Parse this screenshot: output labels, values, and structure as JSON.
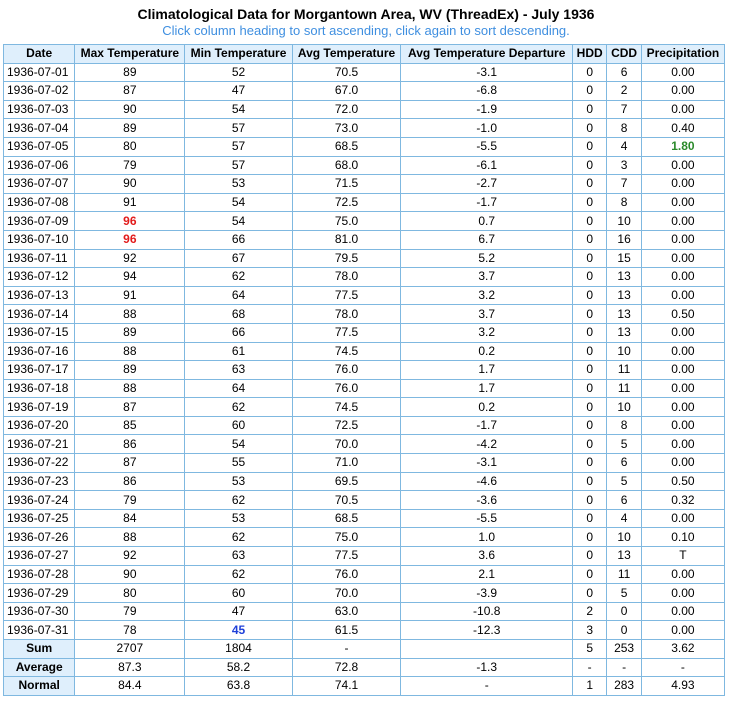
{
  "title": "Climatological Data for Morgantown Area, WV (ThreadEx) - July 1936",
  "subtitle": "Click column heading to sort ascending, click again to sort descending.",
  "colors": {
    "record_high": "#e21b1b",
    "record_low": "#1e3fd8",
    "max_precip": "#2b8a2b",
    "header_bg": "#dfeffc",
    "border": "#7fb8e0"
  },
  "columns": [
    "Date",
    "Max Temperature",
    "Min Temperature",
    "Avg Temperature",
    "Avg Temperature Departure",
    "HDD",
    "CDD",
    "Precipitation"
  ],
  "rows": [
    [
      "1936-07-01",
      "89",
      "52",
      "70.5",
      "-3.1",
      "0",
      "6",
      "0.00"
    ],
    [
      "1936-07-02",
      "87",
      "47",
      "67.0",
      "-6.8",
      "0",
      "2",
      "0.00"
    ],
    [
      "1936-07-03",
      "90",
      "54",
      "72.0",
      "-1.9",
      "0",
      "7",
      "0.00"
    ],
    [
      "1936-07-04",
      "89",
      "57",
      "73.0",
      "-1.0",
      "0",
      "8",
      "0.40"
    ],
    [
      "1936-07-05",
      "80",
      "57",
      "68.5",
      "-5.5",
      "0",
      "4",
      "1.80"
    ],
    [
      "1936-07-06",
      "79",
      "57",
      "68.0",
      "-6.1",
      "0",
      "3",
      "0.00"
    ],
    [
      "1936-07-07",
      "90",
      "53",
      "71.5",
      "-2.7",
      "0",
      "7",
      "0.00"
    ],
    [
      "1936-07-08",
      "91",
      "54",
      "72.5",
      "-1.7",
      "0",
      "8",
      "0.00"
    ],
    [
      "1936-07-09",
      "96",
      "54",
      "75.0",
      "0.7",
      "0",
      "10",
      "0.00"
    ],
    [
      "1936-07-10",
      "96",
      "66",
      "81.0",
      "6.7",
      "0",
      "16",
      "0.00"
    ],
    [
      "1936-07-11",
      "92",
      "67",
      "79.5",
      "5.2",
      "0",
      "15",
      "0.00"
    ],
    [
      "1936-07-12",
      "94",
      "62",
      "78.0",
      "3.7",
      "0",
      "13",
      "0.00"
    ],
    [
      "1936-07-13",
      "91",
      "64",
      "77.5",
      "3.2",
      "0",
      "13",
      "0.00"
    ],
    [
      "1936-07-14",
      "88",
      "68",
      "78.0",
      "3.7",
      "0",
      "13",
      "0.50"
    ],
    [
      "1936-07-15",
      "89",
      "66",
      "77.5",
      "3.2",
      "0",
      "13",
      "0.00"
    ],
    [
      "1936-07-16",
      "88",
      "61",
      "74.5",
      "0.2",
      "0",
      "10",
      "0.00"
    ],
    [
      "1936-07-17",
      "89",
      "63",
      "76.0",
      "1.7",
      "0",
      "11",
      "0.00"
    ],
    [
      "1936-07-18",
      "88",
      "64",
      "76.0",
      "1.7",
      "0",
      "11",
      "0.00"
    ],
    [
      "1936-07-19",
      "87",
      "62",
      "74.5",
      "0.2",
      "0",
      "10",
      "0.00"
    ],
    [
      "1936-07-20",
      "85",
      "60",
      "72.5",
      "-1.7",
      "0",
      "8",
      "0.00"
    ],
    [
      "1936-07-21",
      "86",
      "54",
      "70.0",
      "-4.2",
      "0",
      "5",
      "0.00"
    ],
    [
      "1936-07-22",
      "87",
      "55",
      "71.0",
      "-3.1",
      "0",
      "6",
      "0.00"
    ],
    [
      "1936-07-23",
      "86",
      "53",
      "69.5",
      "-4.6",
      "0",
      "5",
      "0.50"
    ],
    [
      "1936-07-24",
      "79",
      "62",
      "70.5",
      "-3.6",
      "0",
      "6",
      "0.32"
    ],
    [
      "1936-07-25",
      "84",
      "53",
      "68.5",
      "-5.5",
      "0",
      "4",
      "0.00"
    ],
    [
      "1936-07-26",
      "88",
      "62",
      "75.0",
      "1.0",
      "0",
      "10",
      "0.10"
    ],
    [
      "1936-07-27",
      "92",
      "63",
      "77.5",
      "3.6",
      "0",
      "13",
      "T"
    ],
    [
      "1936-07-28",
      "90",
      "62",
      "76.0",
      "2.1",
      "0",
      "11",
      "0.00"
    ],
    [
      "1936-07-29",
      "80",
      "60",
      "70.0",
      "-3.9",
      "0",
      "5",
      "0.00"
    ],
    [
      "1936-07-30",
      "79",
      "47",
      "63.0",
      "-10.8",
      "2",
      "0",
      "0.00"
    ],
    [
      "1936-07-31",
      "78",
      "45",
      "61.5",
      "-12.3",
      "3",
      "0",
      "0.00"
    ]
  ],
  "highlights": [
    {
      "row": 8,
      "col": 1,
      "style": "red"
    },
    {
      "row": 9,
      "col": 1,
      "style": "red"
    },
    {
      "row": 4,
      "col": 7,
      "style": "green"
    },
    {
      "row": 30,
      "col": 2,
      "style": "blue"
    }
  ],
  "summary": [
    [
      "Sum",
      "2707",
      "1804",
      "-",
      "",
      "5",
      "253",
      "3.62"
    ],
    [
      "Average",
      "87.3",
      "58.2",
      "72.8",
      "-1.3",
      "-",
      "-",
      "-"
    ],
    [
      "Normal",
      "84.4",
      "63.8",
      "74.1",
      "-",
      "1",
      "283",
      "4.93"
    ]
  ]
}
